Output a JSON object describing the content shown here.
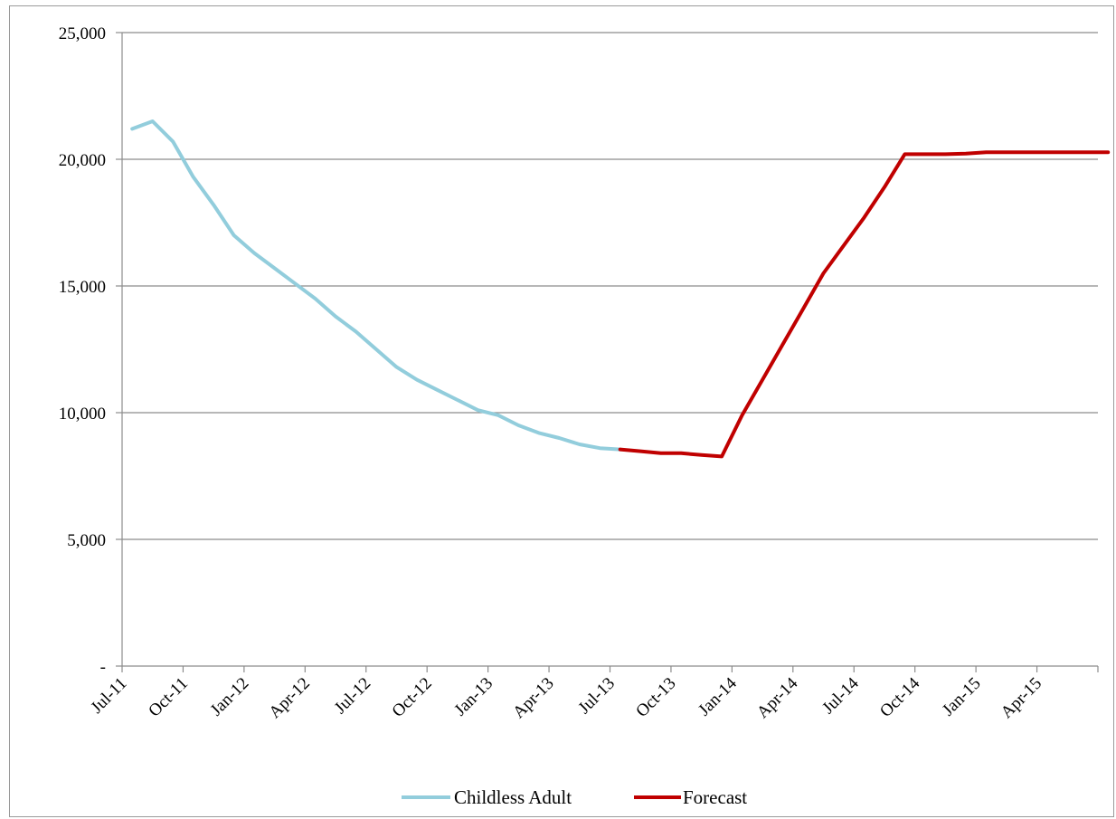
{
  "chart_data": {
    "type": "line",
    "title": "",
    "xlabel": "",
    "ylabel": "",
    "x_tick_labels": [
      "Jul-11",
      "Oct-11",
      "Jan-12",
      "Apr-12",
      "Jul-12",
      "Oct-12",
      "Jan-13",
      "Apr-13",
      "Jul-13",
      "Oct-13",
      "Jan-14",
      "Apr-14",
      "Jul-14",
      "Oct-14",
      "Jan-15",
      "Apr-15"
    ],
    "x_range": [
      "2011-07",
      "2015-07"
    ],
    "y_tick_labels": [
      "-",
      "5,000",
      "10,000",
      "15,000",
      "20,000",
      "25,000"
    ],
    "y_tick_values": [
      0,
      5000,
      10000,
      15000,
      20000,
      25000
    ],
    "ylim": [
      0,
      25000
    ],
    "grid": "horizontal",
    "legend_position": "bottom",
    "series": [
      {
        "name": "Childless Adult",
        "color": "#92CDDC",
        "points": [
          [
            "2011-07",
            21200
          ],
          [
            "2011-08",
            21500
          ],
          [
            "2011-09",
            20700
          ],
          [
            "2011-10",
            19300
          ],
          [
            "2011-11",
            18200
          ],
          [
            "2011-12",
            17000
          ],
          [
            "2012-01",
            16300
          ],
          [
            "2012-02",
            15700
          ],
          [
            "2012-03",
            15100
          ],
          [
            "2012-04",
            14500
          ],
          [
            "2012-05",
            13800
          ],
          [
            "2012-06",
            13200
          ],
          [
            "2012-07",
            12500
          ],
          [
            "2012-08",
            11800
          ],
          [
            "2012-09",
            11300
          ],
          [
            "2012-10",
            10900
          ],
          [
            "2012-11",
            10500
          ],
          [
            "2012-12",
            10100
          ],
          [
            "2013-01",
            9900
          ],
          [
            "2013-02",
            9500
          ],
          [
            "2013-03",
            9200
          ],
          [
            "2013-04",
            9000
          ],
          [
            "2013-05",
            8750
          ],
          [
            "2013-06",
            8600
          ],
          [
            "2013-07",
            8550
          ]
        ]
      },
      {
        "name": "Forecast",
        "color": "#C00000",
        "points": [
          [
            "2013-07",
            8550
          ],
          [
            "2013-08",
            8480
          ],
          [
            "2013-09",
            8400
          ],
          [
            "2013-10",
            8400
          ],
          [
            "2013-11",
            8330
          ],
          [
            "2013-12",
            8270
          ],
          [
            "2014-01",
            9900
          ],
          [
            "2014-02",
            11300
          ],
          [
            "2014-03",
            12700
          ],
          [
            "2014-04",
            14100
          ],
          [
            "2014-05",
            15500
          ],
          [
            "2014-06",
            16600
          ],
          [
            "2014-07",
            17700
          ],
          [
            "2014-08",
            18900
          ],
          [
            "2014-09",
            20200
          ],
          [
            "2014-10",
            20200
          ],
          [
            "2014-11",
            20200
          ],
          [
            "2014-12",
            20220
          ],
          [
            "2015-01",
            20280
          ],
          [
            "2015-02",
            20280
          ],
          [
            "2015-03",
            20280
          ],
          [
            "2015-04",
            20280
          ],
          [
            "2015-05",
            20280
          ],
          [
            "2015-06",
            20280
          ],
          [
            "2015-07",
            20280
          ]
        ]
      }
    ]
  }
}
